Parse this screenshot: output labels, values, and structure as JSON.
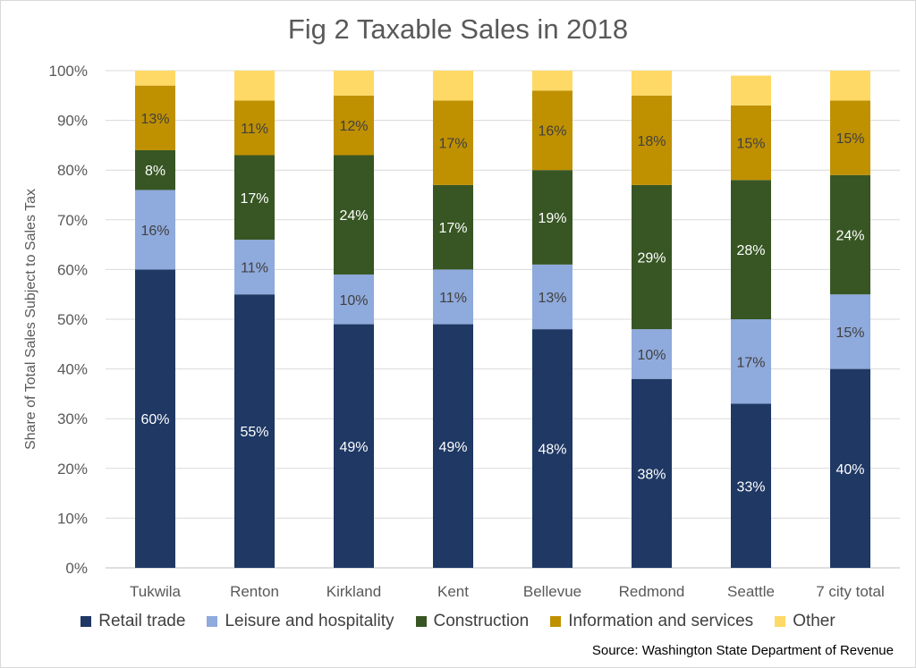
{
  "chart_data": {
    "type": "bar",
    "stacked": true,
    "title": "Fig 2 Taxable Sales in 2018",
    "xlabel": "",
    "ylabel": "Share of Total Sales Subject to Sales Tax",
    "ylim": [
      0,
      100
    ],
    "yticks": [
      "0%",
      "10%",
      "20%",
      "30%",
      "40%",
      "50%",
      "60%",
      "70%",
      "80%",
      "90%",
      "100%"
    ],
    "grid": true,
    "legend_position": "bottom",
    "categories": [
      "Tukwila",
      "Renton",
      "Kirkland",
      "Kent",
      "Bellevue",
      "Redmond",
      "Seattle",
      "7 city total"
    ],
    "series": [
      {
        "name": "Retail trade",
        "color": "#1f3864",
        "label_color": "#ffffff",
        "values": [
          60,
          55,
          49,
          49,
          48,
          38,
          33,
          40
        ],
        "labels": [
          "60%",
          "55%",
          "49%",
          "49%",
          "48%",
          "38%",
          "33%",
          "40%"
        ]
      },
      {
        "name": "Leisure and hospitality",
        "color": "#8faadc",
        "label_color": "#404040",
        "values": [
          16,
          11,
          10,
          11,
          13,
          10,
          17,
          15
        ],
        "labels": [
          "16%",
          "11%",
          "10%",
          "11%",
          "13%",
          "10%",
          "17%",
          "15%"
        ]
      },
      {
        "name": "Construction",
        "color": "#375623",
        "label_color": "#ffffff",
        "values": [
          8,
          17,
          24,
          17,
          19,
          29,
          28,
          24
        ],
        "labels": [
          "8%",
          "17%",
          "24%",
          "17%",
          "19%",
          "29%",
          "28%",
          "24%"
        ]
      },
      {
        "name": "Information and services",
        "color": "#bf9000",
        "label_color": "#404040",
        "values": [
          13,
          11,
          12,
          17,
          16,
          18,
          15,
          15
        ],
        "labels": [
          "13%",
          "11%",
          "12%",
          "17%",
          "16%",
          "18%",
          "15%",
          "15%"
        ]
      },
      {
        "name": "Other",
        "color": "#ffd966",
        "label_color": "#404040",
        "values": [
          3,
          6,
          5,
          7,
          4,
          5,
          6,
          6
        ],
        "labels": [
          "",
          "",
          "",
          "",
          "",
          "",
          "",
          ""
        ]
      }
    ],
    "source": "Source: Washington State Department of Revenue"
  }
}
